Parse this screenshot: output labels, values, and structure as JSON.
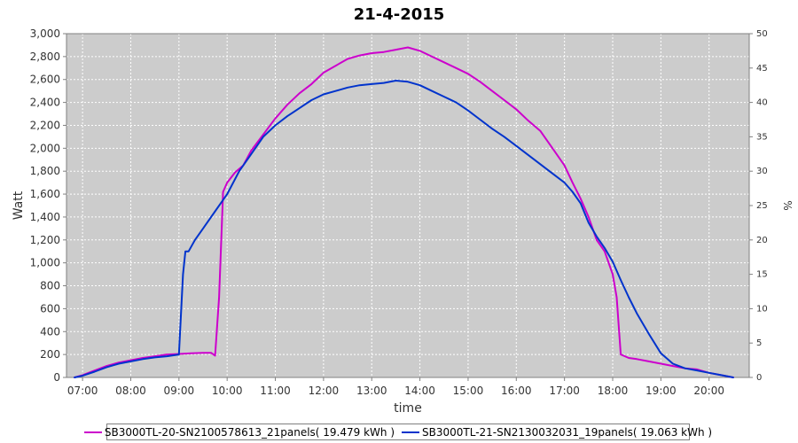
{
  "colors": {
    "series_1": "#CC00CC",
    "series_2": "#0033CC",
    "plot_background": "#CCCCCC",
    "gridline": "#FFFFFF"
  },
  "chart_data": {
    "type": "line",
    "title": "21-4-2015",
    "xlabel": "time",
    "ylabel": "Watt",
    "y2label": "%",
    "xlim": [
      "06:40",
      "20:50"
    ],
    "ylim": [
      0,
      3000
    ],
    "y2lim": [
      0,
      50
    ],
    "x_ticks": [
      "07:00",
      "08:00",
      "09:00",
      "10:00",
      "11:00",
      "12:00",
      "13:00",
      "14:00",
      "15:00",
      "16:00",
      "17:00",
      "18:00",
      "19:00",
      "20:00"
    ],
    "y_ticks": [
      "0",
      "200",
      "400",
      "600",
      "800",
      "1,000",
      "1,200",
      "1,400",
      "1,600",
      "1,800",
      "2,000",
      "2,200",
      "2,400",
      "2,600",
      "2,800",
      "3,000"
    ],
    "y2_ticks": [
      "0",
      "5",
      "10",
      "15",
      "20",
      "25",
      "30",
      "35",
      "40",
      "45",
      "50"
    ],
    "grid": true,
    "legend_position": "bottom",
    "series": [
      {
        "name": "SB3000TL-20-SN2100578613_21panels( 19.479 kWh )",
        "color": "#CC00CC",
        "x": [
          "06:50",
          "07:00",
          "07:15",
          "07:30",
          "07:45",
          "08:00",
          "08:15",
          "08:30",
          "08:45",
          "09:00",
          "09:15",
          "09:30",
          "09:40",
          "09:45",
          "09:50",
          "09:55",
          "10:00",
          "10:10",
          "10:20",
          "10:30",
          "10:45",
          "11:00",
          "11:15",
          "11:30",
          "11:45",
          "12:00",
          "12:15",
          "12:30",
          "12:45",
          "13:00",
          "13:15",
          "13:30",
          "13:45",
          "14:00",
          "14:15",
          "14:30",
          "14:45",
          "15:00",
          "15:15",
          "15:30",
          "15:45",
          "16:00",
          "16:15",
          "16:30",
          "16:45",
          "17:00",
          "17:10",
          "17:20",
          "17:30",
          "17:40",
          "17:50",
          "18:00",
          "18:05",
          "18:10",
          "18:20",
          "18:30",
          "18:45",
          "19:00",
          "19:15",
          "19:30",
          "19:45",
          "20:00",
          "20:15",
          "20:30"
        ],
        "values": [
          0,
          20,
          60,
          100,
          130,
          150,
          170,
          185,
          200,
          205,
          210,
          215,
          215,
          190,
          700,
          1620,
          1700,
          1790,
          1850,
          1980,
          2120,
          2260,
          2380,
          2480,
          2560,
          2660,
          2720,
          2780,
          2810,
          2830,
          2840,
          2860,
          2880,
          2850,
          2800,
          2750,
          2700,
          2650,
          2580,
          2500,
          2420,
          2340,
          2240,
          2150,
          2000,
          1850,
          1700,
          1560,
          1400,
          1200,
          1100,
          900,
          700,
          200,
          170,
          160,
          140,
          120,
          100,
          80,
          70,
          40,
          20,
          0
        ]
      },
      {
        "name": "SB3000TL-21-SN2130032031_19panels( 19.063 kWh )",
        "color": "#0033CC",
        "x": [
          "06:50",
          "07:00",
          "07:15",
          "07:30",
          "07:45",
          "08:00",
          "08:15",
          "08:30",
          "08:45",
          "09:00",
          "09:05",
          "09:08",
          "09:12",
          "09:20",
          "09:30",
          "09:45",
          "10:00",
          "10:15",
          "10:30",
          "10:45",
          "11:00",
          "11:15",
          "11:30",
          "11:45",
          "12:00",
          "12:15",
          "12:30",
          "12:45",
          "13:00",
          "13:15",
          "13:30",
          "13:45",
          "14:00",
          "14:15",
          "14:30",
          "14:45",
          "15:00",
          "15:15",
          "15:30",
          "15:45",
          "16:00",
          "16:15",
          "16:30",
          "16:45",
          "17:00",
          "17:10",
          "17:20",
          "17:30",
          "17:40",
          "17:50",
          "18:00",
          "18:10",
          "18:20",
          "18:30",
          "18:45",
          "19:00",
          "19:15",
          "19:30",
          "19:45",
          "20:00",
          "20:15",
          "20:30"
        ],
        "values": [
          0,
          15,
          50,
          90,
          120,
          140,
          160,
          175,
          185,
          200,
          900,
          1100,
          1100,
          1200,
          1300,
          1450,
          1600,
          1800,
          1950,
          2100,
          2200,
          2280,
          2350,
          2420,
          2470,
          2500,
          2530,
          2550,
          2560,
          2570,
          2590,
          2580,
          2550,
          2500,
          2450,
          2400,
          2330,
          2250,
          2170,
          2100,
          2020,
          1940,
          1860,
          1780,
          1700,
          1620,
          1520,
          1350,
          1230,
          1130,
          1010,
          850,
          700,
          560,
          380,
          210,
          120,
          80,
          60,
          40,
          20,
          0
        ]
      }
    ]
  }
}
